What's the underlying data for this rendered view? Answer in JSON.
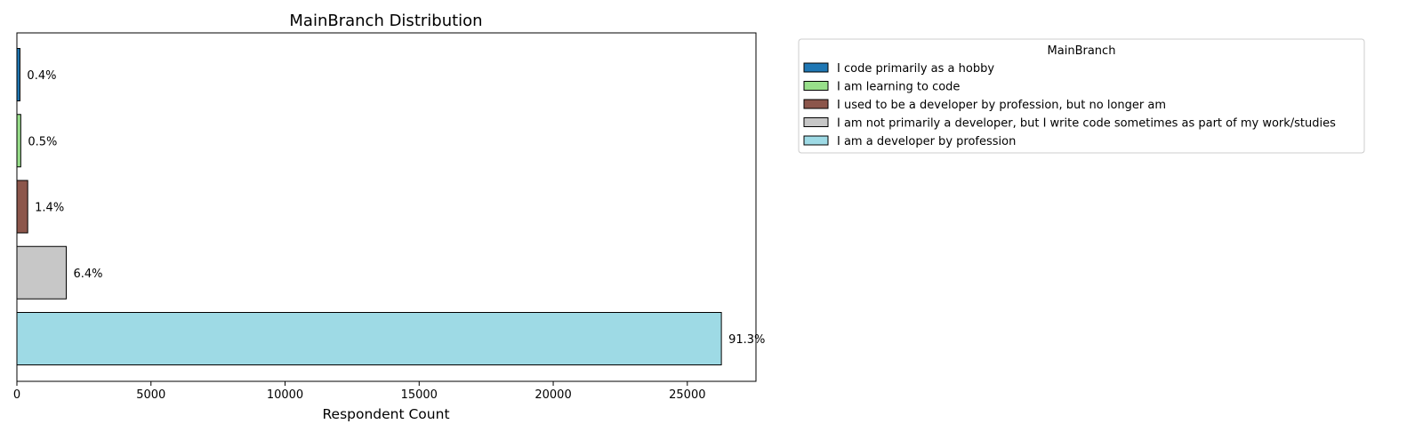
{
  "chart_data": {
    "type": "bar",
    "orientation": "horizontal",
    "title": "MainBranch Distribution",
    "xlabel": "Respondent Count",
    "ylabel": "",
    "xlim": [
      0,
      27560
    ],
    "xticks": [
      0,
      5000,
      10000,
      15000,
      20000,
      25000
    ],
    "grid": false,
    "legend": {
      "title": "MainBranch",
      "placement": "outside-top-right"
    },
    "bars": [
      {
        "category": "I code primarily as a hobby",
        "value": 114,
        "label": "0.4%",
        "color": "#1f77b4"
      },
      {
        "category": "I am learning to code",
        "value": 144,
        "label": "0.5%",
        "color": "#98df8a"
      },
      {
        "category": "I used to be a developer by profession, but no longer am",
        "value": 403,
        "label": "1.4%",
        "color": "#8c564b"
      },
      {
        "category": "I am not primarily a developer, but I write code sometimes as part of my work/studies",
        "value": 1840,
        "label": "6.4%",
        "color": "#c7c7c7"
      },
      {
        "category": "I am a developer by profession",
        "value": 26270,
        "label": "91.3%",
        "color": "#9edae5"
      }
    ]
  }
}
